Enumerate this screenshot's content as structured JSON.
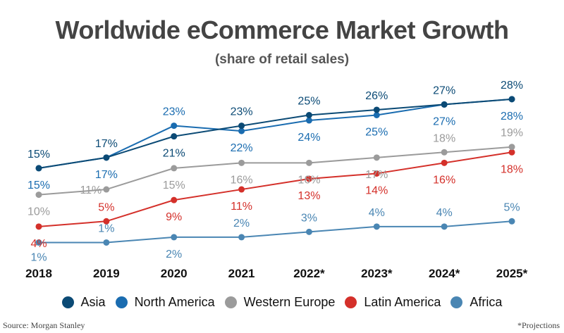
{
  "chart_data": {
    "type": "line",
    "title": "Worldwide eCommerce Market Growth",
    "subtitle": "(share of retail sales)",
    "categories": [
      "2018",
      "2019",
      "2020",
      "2021",
      "2022*",
      "2023*",
      "2024*",
      "2025*"
    ],
    "unit": "%",
    "ylim": [
      0,
      30
    ],
    "grid": false,
    "legend_position": "bottom",
    "series": [
      {
        "name": "Asia",
        "color": "#0b4a75",
        "values": [
          15,
          17,
          21,
          23,
          25,
          26,
          27,
          28
        ]
      },
      {
        "name": "North America",
        "color": "#1a6cb0",
        "values": [
          15,
          17,
          23,
          22,
          24,
          25,
          27,
          28
        ]
      },
      {
        "name": "Western Europe",
        "color": "#9b9b9b",
        "values": [
          10,
          11,
          15,
          16,
          16,
          17,
          18,
          19
        ]
      },
      {
        "name": "Latin America",
        "color": "#d4302a",
        "values": [
          4,
          5,
          9,
          11,
          13,
          14,
          16,
          18
        ]
      },
      {
        "name": "Africa",
        "color": "#4a86b3",
        "values": [
          1,
          1,
          2,
          2,
          3,
          4,
          4,
          5
        ]
      }
    ]
  },
  "footer": {
    "source": "Source: Morgan Stanley",
    "note": "*Projections"
  }
}
